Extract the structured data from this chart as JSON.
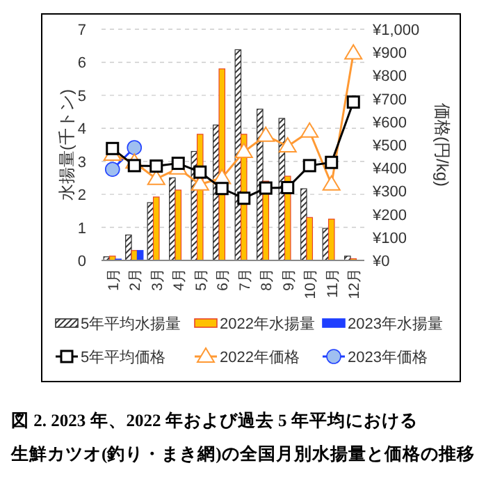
{
  "chart_data": {
    "type": "bar",
    "ylabel": "水揚量(千トン)",
    "y2label": "価格(円/kg)",
    "categories": [
      "1月",
      "2月",
      "3月",
      "4月",
      "5月",
      "6月",
      "7月",
      "8月",
      "9月",
      "10月",
      "11月",
      "12月"
    ],
    "series": [
      {
        "name": "5年平均水揚量",
        "color": "#333333",
        "values": [
          0.11,
          0.77,
          1.75,
          2.5,
          3.3,
          4.1,
          6.38,
          4.58,
          4.3,
          2.17,
          0.97,
          0.13
        ]
      },
      {
        "name": "2022年水揚量",
        "color": "#ffc000",
        "values": [
          0.13,
          0.3,
          1.92,
          2.13,
          3.82,
          5.8,
          3.82,
          2.4,
          2.55,
          1.3,
          1.25,
          0.05
        ]
      },
      {
        "name": "2023年水揚量",
        "color": "#1f3fff",
        "values": [
          0.04,
          0.3,
          null,
          null,
          null,
          null,
          null,
          null,
          null,
          null,
          null,
          null
        ]
      },
      {
        "name": "5年平均価格",
        "type": "line",
        "axis": "y2",
        "marker": "square",
        "color": "#000000",
        "values": [
          484,
          410,
          408,
          420,
          382,
          311,
          269,
          313,
          315,
          410,
          424,
          685
        ]
      },
      {
        "name": "2022年価格",
        "type": "line",
        "axis": "y2",
        "marker": "triangle",
        "color": "#ff9933",
        "values": [
          458,
          424,
          353,
          398,
          329,
          357,
          470,
          540,
          494,
          558,
          329,
          896
        ]
      },
      {
        "name": "2023年価格",
        "type": "line",
        "axis": "y2",
        "marker": "circle",
        "color": "#1f3fff",
        "values": [
          394,
          488,
          null,
          null,
          null,
          null,
          null,
          null,
          null,
          null,
          null,
          null
        ]
      }
    ],
    "ylim": [
      0,
      7
    ],
    "yticks": [
      0,
      1,
      2,
      3,
      4,
      5,
      6,
      7
    ],
    "y2lim": [
      0,
      1000
    ],
    "y2ticks": [
      {
        "value": 0,
        "label": "¥0"
      },
      {
        "value": 100,
        "label": "¥100"
      },
      {
        "value": 200,
        "label": "¥200"
      },
      {
        "value": 300,
        "label": "¥300"
      },
      {
        "value": 400,
        "label": "¥400"
      },
      {
        "value": 500,
        "label": "¥500"
      },
      {
        "value": 600,
        "label": "¥600"
      },
      {
        "value": 700,
        "label": "¥700"
      },
      {
        "value": 800,
        "label": "¥800"
      },
      {
        "value": 900,
        "label": "¥900"
      },
      {
        "value": 1000,
        "label": "¥1,000"
      }
    ],
    "grid": "y",
    "legend": "bottom",
    "annotations": [
      "図 2. 2023 年、2022 年および過去 5 年平均における",
      "生鮮カツオ(釣り・まき網)の全国月別水揚量と価格の推移"
    ]
  }
}
